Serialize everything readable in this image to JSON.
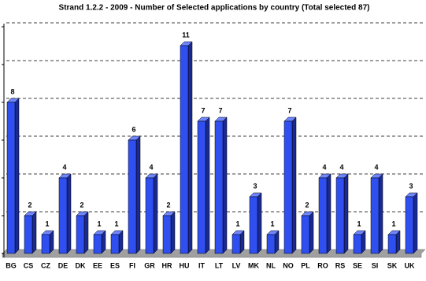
{
  "chart_data": {
    "type": "bar3d",
    "title": "Strand 1.2.2 - 2009 - Number of Selected applications by country (Total selected 87)",
    "categories": [
      "BG",
      "CS",
      "CZ",
      "DE",
      "DK",
      "EE",
      "ES",
      "FI",
      "GR",
      "HR",
      "HU",
      "IT",
      "LT",
      "LV",
      "MK",
      "NL",
      "NO",
      "PL",
      "RO",
      "RS",
      "SE",
      "SI",
      "SK",
      "UK"
    ],
    "values": [
      8,
      2,
      1,
      4,
      2,
      1,
      1,
      6,
      4,
      2,
      11,
      7,
      7,
      1,
      3,
      1,
      7,
      2,
      4,
      4,
      1,
      4,
      1,
      3
    ],
    "color": "#2f4ff0",
    "ylim": [
      0,
      12
    ],
    "yticks": [
      0,
      2,
      4,
      6,
      8,
      10,
      12
    ],
    "grid": true
  }
}
